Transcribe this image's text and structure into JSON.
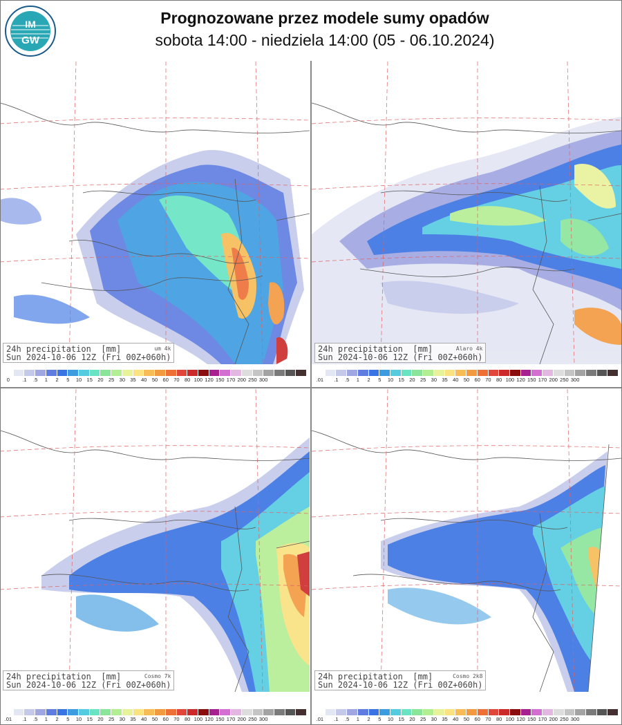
{
  "header": {
    "title": "Prognozowane przez modele sumy opadów",
    "subtitle": "sobota 14:00 - niedziela 14:00 (05 - 06.10.2024)",
    "logo_text": "IMGW"
  },
  "colors": {
    "scale": [
      "#ffffff",
      "#e3e6f3",
      "#c4c9ea",
      "#9fa6e1",
      "#5f7de0",
      "#3a73e3",
      "#3d9be0",
      "#55cbe0",
      "#68e4c3",
      "#8ae59a",
      "#b4ee93",
      "#e8f29b",
      "#f9e27f",
      "#f7bc55",
      "#f29a3f",
      "#ee7036",
      "#e1463a",
      "#cc2a2a",
      "#8b0e0e",
      "#a6208f",
      "#d36fd0",
      "#e2b8e1",
      "#dddddd",
      "#c4c4c4",
      "#a3a3a3",
      "#7a7a7a",
      "#555555",
      "#443030"
    ]
  },
  "panels": [
    {
      "id": "um",
      "info_line1": "24h precipitation  [mm]",
      "info_line2": "Sun 2024-10-06 12Z (Fri 00Z+060h)",
      "model": "um 4k",
      "scale_labels": [
        "0",
        ".1",
        ".5",
        "1",
        "2",
        "5",
        "10",
        "15",
        "20",
        "25",
        "30",
        "35",
        "40",
        "50",
        "60",
        "70",
        "80",
        "100",
        "120",
        "150",
        "170",
        "200",
        "250",
        "300"
      ]
    },
    {
      "id": "alaro",
      "info_line1": "24h precipitation  [mm]",
      "info_line2": "Sun 2024-10-06 12Z (Fri 00Z+060h)",
      "model": "Alaro 4k",
      "scale_labels": [
        ".01",
        ".1",
        ".5",
        "1",
        "2",
        "5",
        "10",
        "15",
        "20",
        "25",
        "30",
        "35",
        "40",
        "50",
        "60",
        "70",
        "80",
        "100",
        "120",
        "150",
        "170",
        "200",
        "250",
        "300"
      ]
    },
    {
      "id": "cosmo7",
      "info_line1": "24h precipitation  [mm]",
      "info_line2": "Sun 2024-10-06 12Z (Fri 00Z+060h)",
      "model": "Cosmo 7k",
      "scale_labels": [
        ".01",
        ".1",
        ".5",
        "1",
        "2",
        "5",
        "10",
        "15",
        "20",
        "25",
        "30",
        "35",
        "40",
        "50",
        "60",
        "70",
        "80",
        "100",
        "120",
        "150",
        "170",
        "200",
        "250",
        "300"
      ]
    },
    {
      "id": "cosmo2k8",
      "info_line1": "24h precipitation  [mm]",
      "info_line2": "Sun 2024-10-06 12Z (Fri 00Z+060h)",
      "model": "Cosmo 2k8",
      "scale_labels": [
        ".01",
        ".1",
        ".5",
        "1",
        "2",
        "5",
        "10",
        "15",
        "20",
        "25",
        "30",
        "35",
        "40",
        "50",
        "60",
        "70",
        "80",
        "100",
        "120",
        "150",
        "170",
        "200",
        "250",
        "300"
      ]
    }
  ]
}
